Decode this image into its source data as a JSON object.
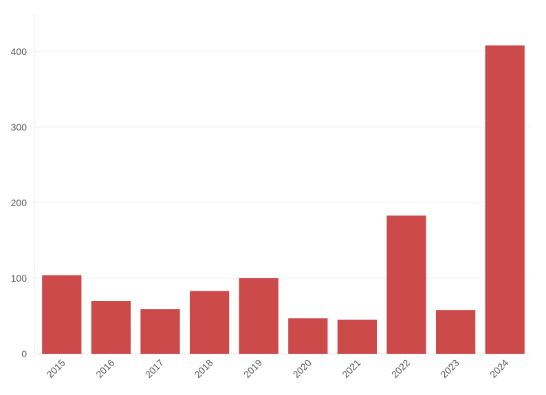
{
  "chart_data": {
    "type": "bar",
    "categories": [
      "2015",
      "2016",
      "2017",
      "2018",
      "2019",
      "2020",
      "2021",
      "2022",
      "2023",
      "2024"
    ],
    "values": [
      104,
      70,
      59,
      83,
      100,
      47,
      45,
      183,
      58,
      408
    ],
    "ylim": [
      0,
      450
    ],
    "yticks": [
      0,
      100,
      200,
      300,
      400
    ],
    "bar_color": "#cc4a49",
    "grid": true
  }
}
